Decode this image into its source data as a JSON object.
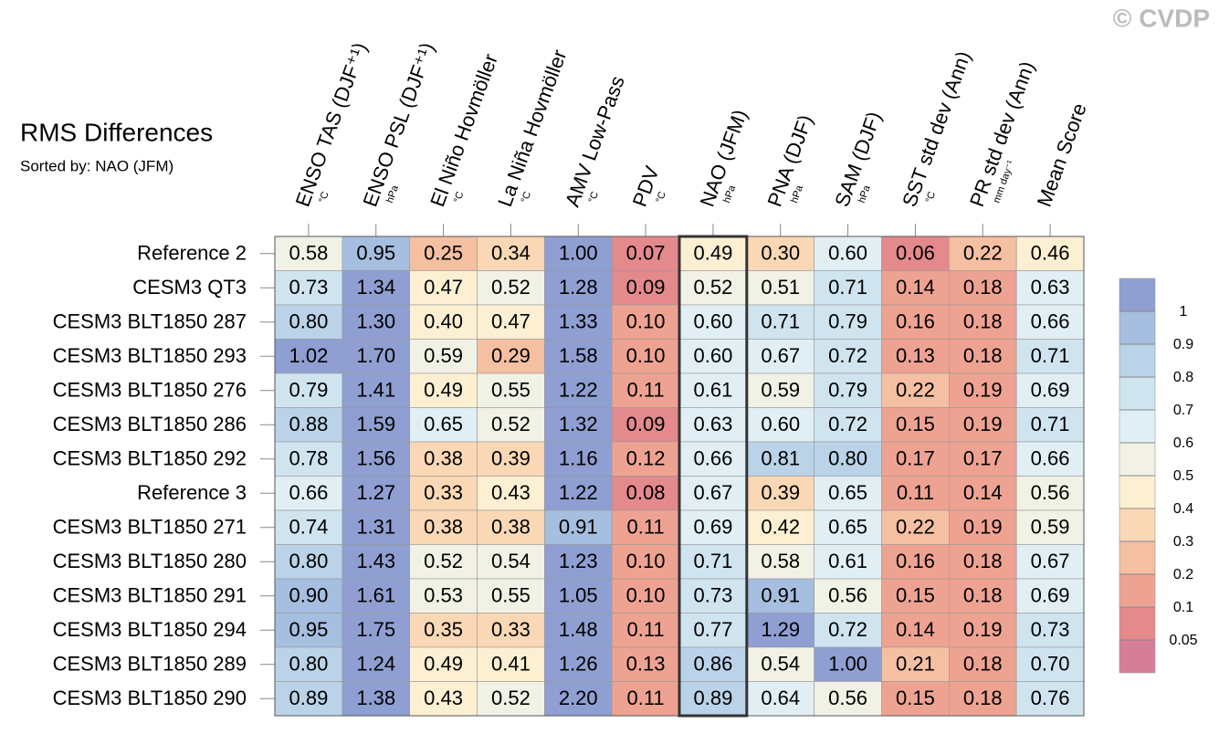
{
  "chart_data": {
    "type": "heatmap",
    "title": "RMS Differences",
    "subtitle": "Sorted by: NAO (JFM)",
    "watermark": "© CVDP",
    "x": [
      "ENSO TAS (DJF⁺¹)",
      "ENSO PSL (DJF⁺¹)",
      "El Niño Hovmöller",
      "La Niña Hovmöller",
      "AMV Low-Pass",
      "PDV",
      "NAO (JFM)",
      "PNA (DJF)",
      "SAM (DJF)",
      "SST std dev (Ann)",
      "PR std dev (Ann)",
      "Mean Score"
    ],
    "x_units": [
      "°C",
      "hPa",
      "°C",
      "°C",
      "°C",
      "°C",
      "hPa",
      "hPa",
      "hPa",
      "°C",
      "mm day⁻¹",
      null
    ],
    "y": [
      "Reference 2",
      "CESM3 QT3",
      "CESM3 BLT1850 287",
      "CESM3 BLT1850 293",
      "CESM3 BLT1850 276",
      "CESM3 BLT1850 286",
      "CESM3 BLT1850 292",
      "Reference 3",
      "CESM3 BLT1850 271",
      "CESM3 BLT1850 280",
      "CESM3 BLT1850 291",
      "CESM3 BLT1850 294",
      "CESM3 BLT1850 289",
      "CESM3 BLT1850 290"
    ],
    "values": [
      [
        0.58,
        0.95,
        0.25,
        0.34,
        1.0,
        0.07,
        0.49,
        0.3,
        0.6,
        0.06,
        0.22,
        0.46
      ],
      [
        0.73,
        1.34,
        0.47,
        0.52,
        1.28,
        0.09,
        0.52,
        0.51,
        0.71,
        0.14,
        0.18,
        0.63
      ],
      [
        0.8,
        1.3,
        0.4,
        0.47,
        1.33,
        0.1,
        0.6,
        0.71,
        0.79,
        0.16,
        0.18,
        0.66
      ],
      [
        1.02,
        1.7,
        0.59,
        0.29,
        1.58,
        0.1,
        0.6,
        0.67,
        0.72,
        0.13,
        0.18,
        0.71
      ],
      [
        0.79,
        1.41,
        0.49,
        0.55,
        1.22,
        0.11,
        0.61,
        0.59,
        0.79,
        0.22,
        0.19,
        0.69
      ],
      [
        0.88,
        1.59,
        0.65,
        0.52,
        1.32,
        0.09,
        0.63,
        0.6,
        0.72,
        0.15,
        0.19,
        0.71
      ],
      [
        0.78,
        1.56,
        0.38,
        0.39,
        1.16,
        0.12,
        0.66,
        0.81,
        0.8,
        0.17,
        0.17,
        0.66
      ],
      [
        0.66,
        1.27,
        0.33,
        0.43,
        1.22,
        0.08,
        0.67,
        0.39,
        0.65,
        0.11,
        0.14,
        0.56
      ],
      [
        0.74,
        1.31,
        0.38,
        0.38,
        0.91,
        0.11,
        0.69,
        0.42,
        0.65,
        0.22,
        0.19,
        0.59
      ],
      [
        0.8,
        1.43,
        0.52,
        0.54,
        1.23,
        0.1,
        0.71,
        0.58,
        0.61,
        0.16,
        0.18,
        0.67
      ],
      [
        0.9,
        1.61,
        0.53,
        0.55,
        1.05,
        0.1,
        0.73,
        0.91,
        0.56,
        0.15,
        0.18,
        0.69
      ],
      [
        0.95,
        1.75,
        0.35,
        0.33,
        1.48,
        0.11,
        0.77,
        1.29,
        0.72,
        0.14,
        0.19,
        0.73
      ],
      [
        0.8,
        1.24,
        0.49,
        0.41,
        1.26,
        0.13,
        0.86,
        0.54,
        1.0,
        0.21,
        0.18,
        0.7
      ],
      [
        0.89,
        1.38,
        0.43,
        0.52,
        2.2,
        0.11,
        0.89,
        0.64,
        0.56,
        0.15,
        0.18,
        0.76
      ]
    ],
    "value_labels": [
      [
        "0.58",
        "0.95",
        "0.25",
        "0.34",
        "1.00",
        "0.07",
        "0.49",
        "0.30",
        "0.60",
        "0.06",
        "0.22",
        "0.46"
      ],
      [
        "0.73",
        "1.34",
        "0.47",
        "0.52",
        "1.28",
        "0.09",
        "0.52",
        "0.51",
        "0.71",
        "0.14",
        "0.18",
        "0.63"
      ],
      [
        "0.80",
        "1.30",
        "0.40",
        "0.47",
        "1.33",
        "0.10",
        "0.60",
        "0.71",
        "0.79",
        "0.16",
        "0.18",
        "0.66"
      ],
      [
        "1.02",
        "1.70",
        "0.59",
        "0.29",
        "1.58",
        "0.10",
        "0.60",
        "0.67",
        "0.72",
        "0.13",
        "0.18",
        "0.71"
      ],
      [
        "0.79",
        "1.41",
        "0.49",
        "0.55",
        "1.22",
        "0.11",
        "0.61",
        "0.59",
        "0.79",
        "0.22",
        "0.19",
        "0.69"
      ],
      [
        "0.88",
        "1.59",
        "0.65",
        "0.52",
        "1.32",
        "0.09",
        "0.63",
        "0.60",
        "0.72",
        "0.15",
        "0.19",
        "0.71"
      ],
      [
        "0.78",
        "1.56",
        "0.38",
        "0.39",
        "1.16",
        "0.12",
        "0.66",
        "0.81",
        "0.80",
        "0.17",
        "0.17",
        "0.66"
      ],
      [
        "0.66",
        "1.27",
        "0.33",
        "0.43",
        "1.22",
        "0.08",
        "0.67",
        "0.39",
        "0.65",
        "0.11",
        "0.14",
        "0.56"
      ],
      [
        "0.74",
        "1.31",
        "0.38",
        "0.38",
        "0.91",
        "0.11",
        "0.69",
        "0.42",
        "0.65",
        "0.22",
        "0.19",
        "0.59"
      ],
      [
        "0.80",
        "1.43",
        "0.52",
        "0.54",
        "1.23",
        "0.10",
        "0.71",
        "0.58",
        "0.61",
        "0.16",
        "0.18",
        "0.67"
      ],
      [
        "0.90",
        "1.61",
        "0.53",
        "0.55",
        "1.05",
        "0.10",
        "0.73",
        "0.91",
        "0.56",
        "0.15",
        "0.18",
        "0.69"
      ],
      [
        "0.95",
        "1.75",
        "0.35",
        "0.33",
        "1.48",
        "0.11",
        "0.77",
        "1.29",
        "0.72",
        "0.14",
        "0.19",
        "0.73"
      ],
      [
        "0.80",
        "1.24",
        "0.49",
        "0.41",
        "1.26",
        "0.13",
        "0.86",
        "0.54",
        "1.00",
        "0.21",
        "0.18",
        "0.70"
      ],
      [
        "0.89",
        "1.38",
        "0.43",
        "0.52",
        "2.20",
        "0.11",
        "0.89",
        "0.64",
        "0.56",
        "0.15",
        "0.18",
        "0.76"
      ]
    ],
    "colorbar": {
      "levels": [
        0.05,
        0.1,
        0.2,
        0.3,
        0.4,
        0.5,
        0.6,
        0.7,
        0.8,
        0.9,
        1
      ],
      "colors": [
        "#d67d97",
        "#e4898c",
        "#eea392",
        "#f5bfa2",
        "#fad8b5",
        "#fcefd2",
        "#f1f1e6",
        "#e1eff5",
        "#cfe4ef",
        "#bad3e8",
        "#a6bedf",
        "#8f9fd2"
      ]
    }
  }
}
